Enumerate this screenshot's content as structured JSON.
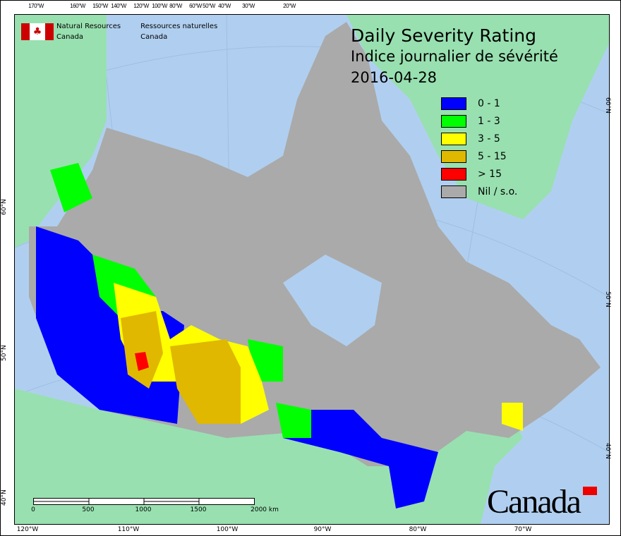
{
  "title": {
    "line1": "Daily Severity Rating",
    "line2": "Indice journalier de sévérité",
    "date": "2016-04-28"
  },
  "agency": {
    "en_line1": "Natural Resources",
    "en_line2": "Canada",
    "fr_line1": "Ressources naturelles",
    "fr_line2": "Canada"
  },
  "wordmark": "Canada",
  "legend": [
    {
      "label": "0 - 1",
      "color": "#0000ff"
    },
    {
      "label": "1 - 3",
      "color": "#00ff00"
    },
    {
      "label": "3 - 5",
      "color": "#ffff00"
    },
    {
      "label": "5 - 15",
      "color": "#e0b800"
    },
    {
      "label": "> 15",
      "color": "#ff0000"
    },
    {
      "label": "Nil / s.o.",
      "color": "#aaaaaa"
    }
  ],
  "top_ticks": [
    "170°W",
    "160°W",
    "150°W",
    "140°W",
    "120°W",
    "100°W",
    "80°W",
    "60°W",
    "50°W",
    "40°W",
    "30°W",
    "20°W"
  ],
  "bottom_ticks": [
    "120°W",
    "110°W",
    "100°W",
    "90°W",
    "80°W",
    "70°W"
  ],
  "left_ticks": [
    "60°N",
    "50°N",
    "40°N"
  ],
  "right_ticks": [
    "60°N",
    "50°N",
    "40°N"
  ],
  "scale": {
    "labels": [
      "0",
      "500",
      "1000",
      "1500",
      "2000 km"
    ]
  },
  "colors": {
    "water": "#b0cff0",
    "foreign_land": "#98e0b0",
    "no_data": "#aaaaaa"
  }
}
